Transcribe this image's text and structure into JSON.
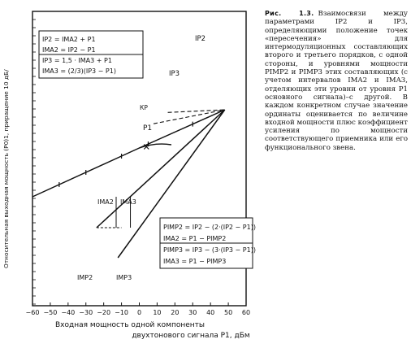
{
  "figure": {
    "caption_label": "Рис. 1.3.",
    "caption_text": "Взаимосвязи между параметрами IP2 и IP3, определяющими положение точек «пересечения» для интермодуляционных составляющих второго и третьего порядков, с одной стороны, и уровнями мощности PIMP2 и PIMP3 этих составляющих (с учетом интервалов IMA2 и IMA3, отделяющих эти уровни от уровня P1 основного сигнала)–с другой. В каждом конкретном случае значение ординаты оценивается по величине входной мощности плюс коэффициент усиления по мощности соответствующего приемника или его функционального звена."
  },
  "chart_data": {
    "type": "line",
    "xlabel_line1": "Входная мощность одной компоненты",
    "xlabel_line2": "двухтонового сигнала P1, дБм",
    "ylabel": "Относительная выходная мощность (P0)1, приращение 10 дБ/",
    "x_ticks": [
      "−60",
      "−50",
      "−40",
      "−30",
      "−20",
      "−10",
      "0",
      "10",
      "20",
      "30",
      "40",
      "50",
      "60"
    ],
    "xlim": [
      -60,
      60
    ],
    "series": [
      {
        "id": "fundamental",
        "x": [
          -60,
          -10,
          0,
          48
        ],
        "y": [
          -20,
          30,
          40,
          87
        ]
      },
      {
        "id": "im2",
        "x": [
          -24,
          48
        ],
        "y": [
          -58,
          87
        ]
      },
      {
        "id": "im3",
        "x": [
          -12,
          48
        ],
        "y": [
          -95,
          87
        ]
      },
      {
        "id": "compression",
        "x": [
          0,
          18
        ],
        "y": [
          40,
          44
        ]
      }
    ],
    "point_labels": {
      "ip2": "IP2",
      "ip3": "IP3",
      "kp": "КР",
      "p1": "P1",
      "ima2": "IMA2",
      "ima3": "IMA3",
      "imp2": "IMP2",
      "imp3": "IMP3"
    },
    "box_top": [
      "IP2 = IMA2 + P1",
      "IMA2 = IP2 − P1",
      "IP3 = 1,5 · IMA3 + P1",
      "IMA3 = (2/3)(IP3 − P1)"
    ],
    "box_bottom": [
      "PIMP2 = IP2 − (2·(IP2 − P1))",
      "IMA2 = P1 − PIMP2",
      "PIMP3 = IP3 − (3·(IP3 − P1))",
      "IMA3 = P1 − PIMP3"
    ]
  }
}
